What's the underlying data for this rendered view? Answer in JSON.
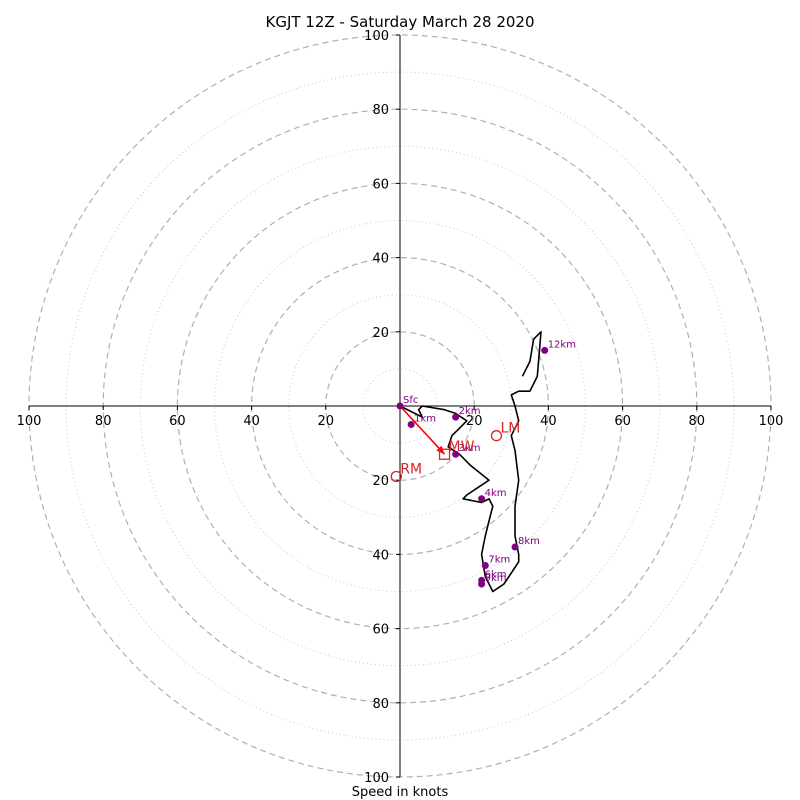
{
  "chart_data": {
    "type": "hodograph",
    "title": "KGJT 12Z - Saturday March 28 2020",
    "xlabel": "Speed in knots",
    "ylabel": "",
    "range": [
      -100,
      100
    ],
    "major_rings": [
      20,
      40,
      60,
      80,
      100
    ],
    "minor_rings": [
      10,
      30,
      50,
      70,
      90
    ],
    "x_ticks": [
      {
        "v": -100,
        "label": "100"
      },
      {
        "v": -80,
        "label": "80"
      },
      {
        "v": -60,
        "label": "60"
      },
      {
        "v": -40,
        "label": "40"
      },
      {
        "v": -20,
        "label": "20"
      },
      {
        "v": 20,
        "label": "20"
      },
      {
        "v": 40,
        "label": "40"
      },
      {
        "v": 60,
        "label": "60"
      },
      {
        "v": 80,
        "label": "80"
      },
      {
        "v": 100,
        "label": "100"
      }
    ],
    "y_ticks": [
      {
        "v": 100,
        "label": "100"
      },
      {
        "v": 80,
        "label": "80"
      },
      {
        "v": 60,
        "label": "60"
      },
      {
        "v": 40,
        "label": "40"
      },
      {
        "v": 20,
        "label": "20"
      },
      {
        "v": -20,
        "label": "20"
      },
      {
        "v": -40,
        "label": "40"
      },
      {
        "v": -60,
        "label": "60"
      },
      {
        "v": -80,
        "label": "80"
      },
      {
        "v": -100,
        "label": "100"
      }
    ],
    "wind_trace": {
      "u": [
        0,
        4,
        6,
        5,
        6,
        12,
        15,
        18,
        16,
        14,
        13,
        16,
        19,
        24,
        18,
        17,
        22,
        24,
        25,
        24,
        23,
        22,
        23,
        25,
        28,
        32,
        32,
        31,
        31,
        32,
        31,
        30,
        32,
        31,
        30,
        32,
        35,
        37,
        38,
        36,
        35,
        33
      ],
      "v": [
        0,
        -2,
        -3,
        -1,
        0,
        -1,
        -2,
        -4,
        -6,
        -8,
        -11,
        -13,
        -16,
        -20,
        -24,
        -25,
        -26,
        -25,
        -27,
        -31,
        -35,
        -40,
        -46,
        -50,
        -48,
        -42,
        -40,
        -35,
        -27,
        -20,
        -12,
        -8,
        -4,
        0,
        3,
        4,
        4,
        8,
        20,
        18,
        12,
        8
      ]
    },
    "height_markers": [
      {
        "label": "Sfc",
        "u": 0,
        "v": 0
      },
      {
        "label": "1km",
        "u": 3,
        "v": -5
      },
      {
        "label": "2km",
        "u": 15,
        "v": -3
      },
      {
        "label": "3km",
        "u": 15,
        "v": -13
      },
      {
        "label": "4km",
        "u": 22,
        "v": -25
      },
      {
        "label": "6km",
        "u": 22,
        "v": -47
      },
      {
        "label": "7km",
        "u": 23,
        "v": -43
      },
      {
        "label": "8km",
        "u": 31,
        "v": -38
      },
      {
        "label": "9km",
        "u": 22,
        "v": -48
      },
      {
        "label": "12km",
        "u": 39,
        "v": 15
      }
    ],
    "mean_wind_vector": {
      "from": [
        0,
        0
      ],
      "to": [
        12,
        -13
      ]
    },
    "storm_motions": [
      {
        "label": "LM",
        "u": 26,
        "v": -8,
        "marker": "circle"
      },
      {
        "label": "RM",
        "u": -1,
        "v": -19,
        "marker": "circle"
      },
      {
        "label": "MW",
        "u": 12,
        "v": -13,
        "marker": "square"
      }
    ],
    "colors": {
      "trace": "#000000",
      "markers": "#800080",
      "motion": "#d62728",
      "mean_wind": "#ff0000",
      "grid": "#b0b0b0",
      "axis": "#000000"
    }
  }
}
